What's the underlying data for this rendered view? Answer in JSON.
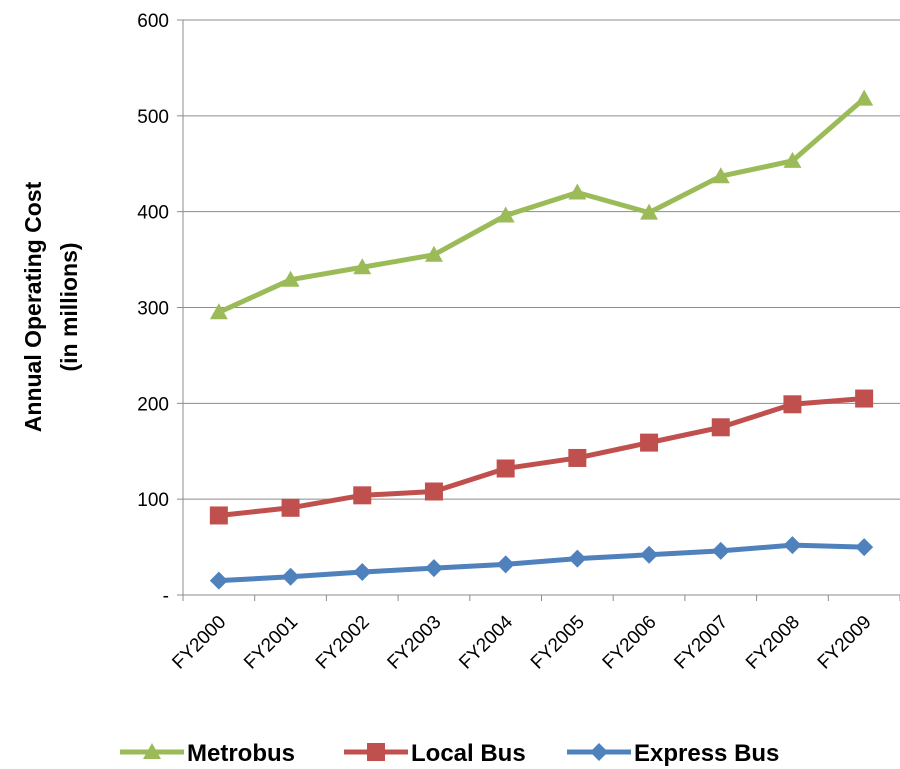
{
  "chart_data": {
    "type": "line",
    "title": "",
    "xlabel": "",
    "ylabel": [
      "Annual Operating Cost",
      "(in millions)"
    ],
    "categories": [
      "FY2000",
      "FY2001",
      "FY2002",
      "FY2003",
      "FY2004",
      "FY2005",
      "FY2006",
      "FY2007",
      "FY2008",
      "FY2009"
    ],
    "y_ticks": [
      0,
      100,
      200,
      300,
      400,
      500,
      600
    ],
    "y_tick_labels": [
      "-",
      "100",
      "200",
      "300",
      "400",
      "500",
      "600"
    ],
    "ylim": [
      0,
      600
    ],
    "grid": true,
    "legend_position": "bottom",
    "series": [
      {
        "name": "Metrobus",
        "color": "#9BBB59",
        "marker": "triangle",
        "values": [
          295,
          329,
          342,
          355,
          396,
          420,
          399,
          437,
          453,
          518
        ]
      },
      {
        "name": "Local Bus",
        "color": "#C0504D",
        "marker": "square",
        "values": [
          83,
          91,
          104,
          108,
          132,
          143,
          159,
          175,
          199,
          205
        ]
      },
      {
        "name": "Express Bus",
        "color": "#4F81BD",
        "marker": "diamond",
        "values": [
          15,
          19,
          24,
          28,
          32,
          38,
          42,
          46,
          52,
          50
        ]
      }
    ]
  }
}
